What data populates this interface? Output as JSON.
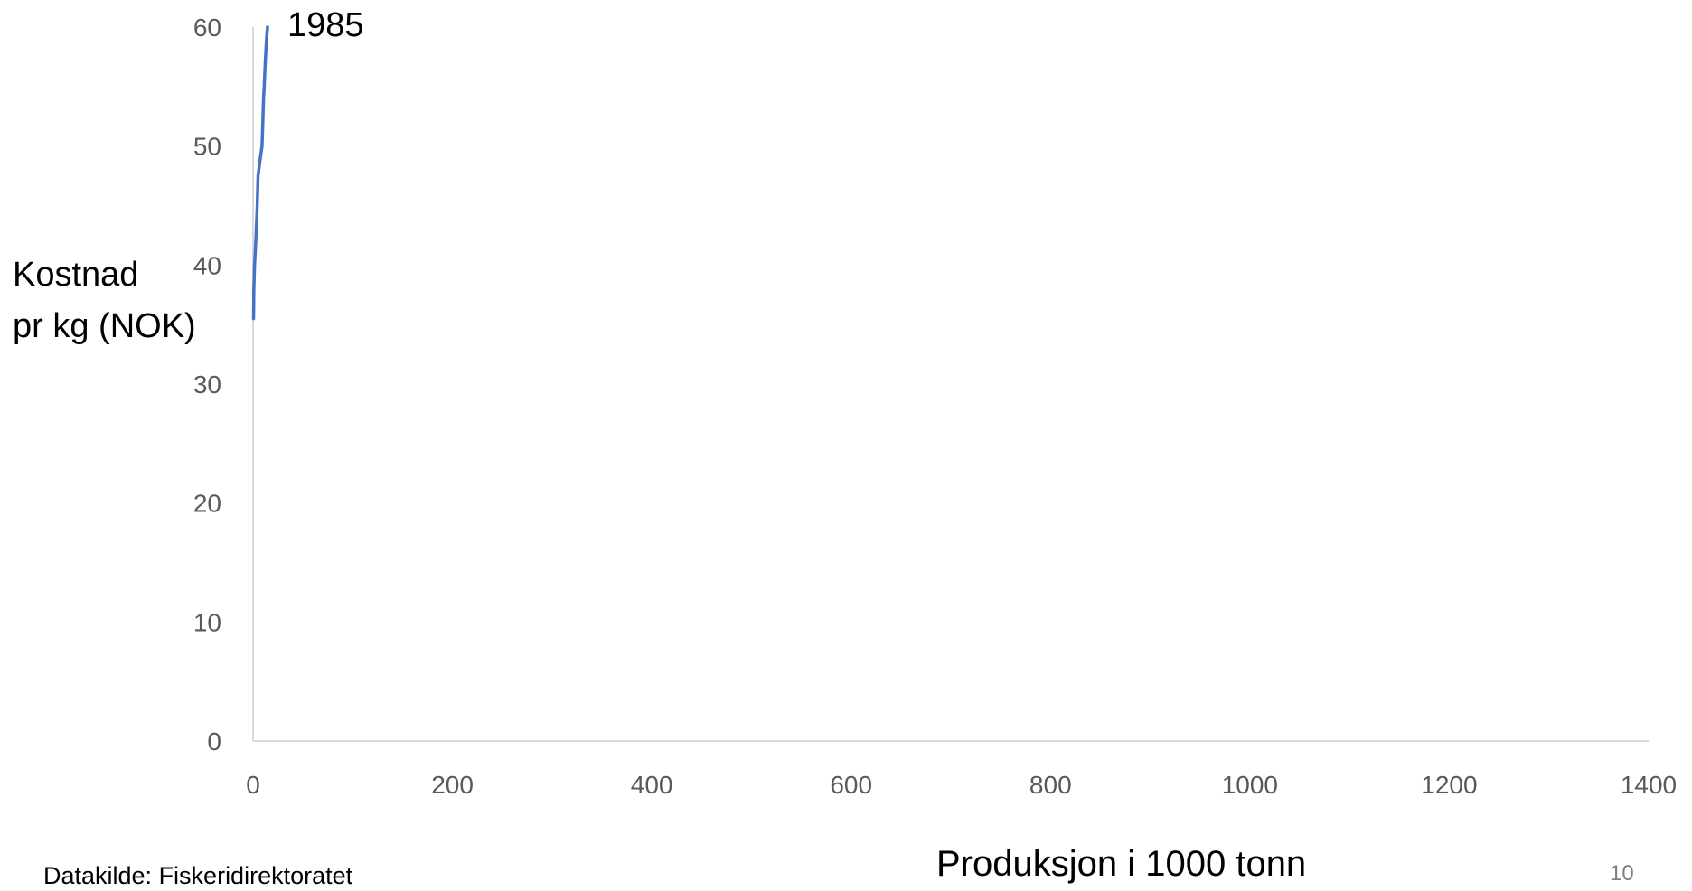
{
  "chart_data": {
    "type": "line",
    "title": "",
    "xlabel": "Produksjon i 1000 tonn",
    "ylabel": "Kostnad\npr kg (NOK)",
    "xlim": [
      0,
      1400
    ],
    "ylim": [
      0,
      60
    ],
    "x_ticks": [
      0,
      200,
      400,
      600,
      800,
      1000,
      1200,
      1400
    ],
    "y_ticks": [
      0,
      10,
      20,
      30,
      40,
      50,
      60
    ],
    "grid": false,
    "legend": "none",
    "series": [
      {
        "color": "#4472c4",
        "points": [
          {
            "x": 0.5,
            "y": 35.5
          },
          {
            "x": 0.8,
            "y": 38.0
          },
          {
            "x": 1.5,
            "y": 40.0
          },
          {
            "x": 3.0,
            "y": 42.5
          },
          {
            "x": 4.2,
            "y": 45.0
          },
          {
            "x": 5.0,
            "y": 47.5
          },
          {
            "x": 6.5,
            "y": 48.5
          },
          {
            "x": 9.0,
            "y": 50.0
          },
          {
            "x": 9.8,
            "y": 52.0
          },
          {
            "x": 10.5,
            "y": 54.0
          },
          {
            "x": 11.2,
            "y": 55.0
          },
          {
            "x": 12.2,
            "y": 57.0
          },
          {
            "x": 13.5,
            "y": 59.0
          },
          {
            "x": 14.5,
            "y": 60.0
          }
        ]
      }
    ],
    "annotations": [
      {
        "text": "1985",
        "x": 14.5,
        "y": 60.0
      }
    ]
  },
  "source_note": "Datakilde: Fiskeridirektoratet",
  "page_number": "10"
}
